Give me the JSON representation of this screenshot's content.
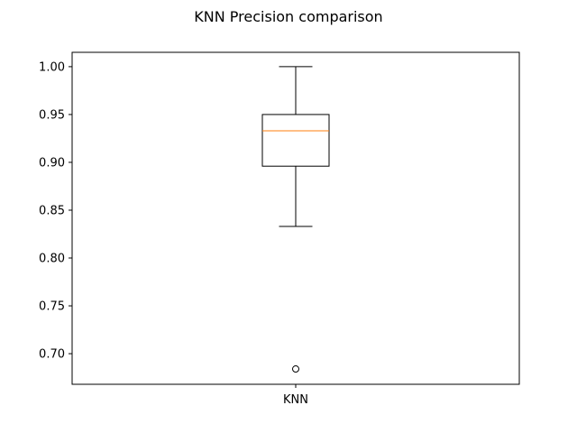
{
  "chart_data": {
    "type": "box",
    "title": "KNN Precision comparison",
    "xlabel": "",
    "ylabel": "",
    "categories": [
      "KNN"
    ],
    "boxes": [
      {
        "name": "KNN",
        "whisker_low": 0.833,
        "q1": 0.896,
        "median": 0.933,
        "q3": 0.95,
        "whisker_high": 1.0,
        "outliers": [
          0.684
        ]
      }
    ],
    "ylim": [
      0.668,
      1.015
    ],
    "yticks": [
      0.7,
      0.75,
      0.8,
      0.85,
      0.9,
      0.95,
      1.0
    ],
    "ytick_labels": [
      "0.70",
      "0.75",
      "0.80",
      "0.85",
      "0.90",
      "0.95",
      "1.00"
    ],
    "colors": {
      "box": "#000000",
      "median": "#ff7f0e",
      "outlier": "#000000",
      "axes": "#000000"
    },
    "grid": false,
    "legend": "none"
  }
}
